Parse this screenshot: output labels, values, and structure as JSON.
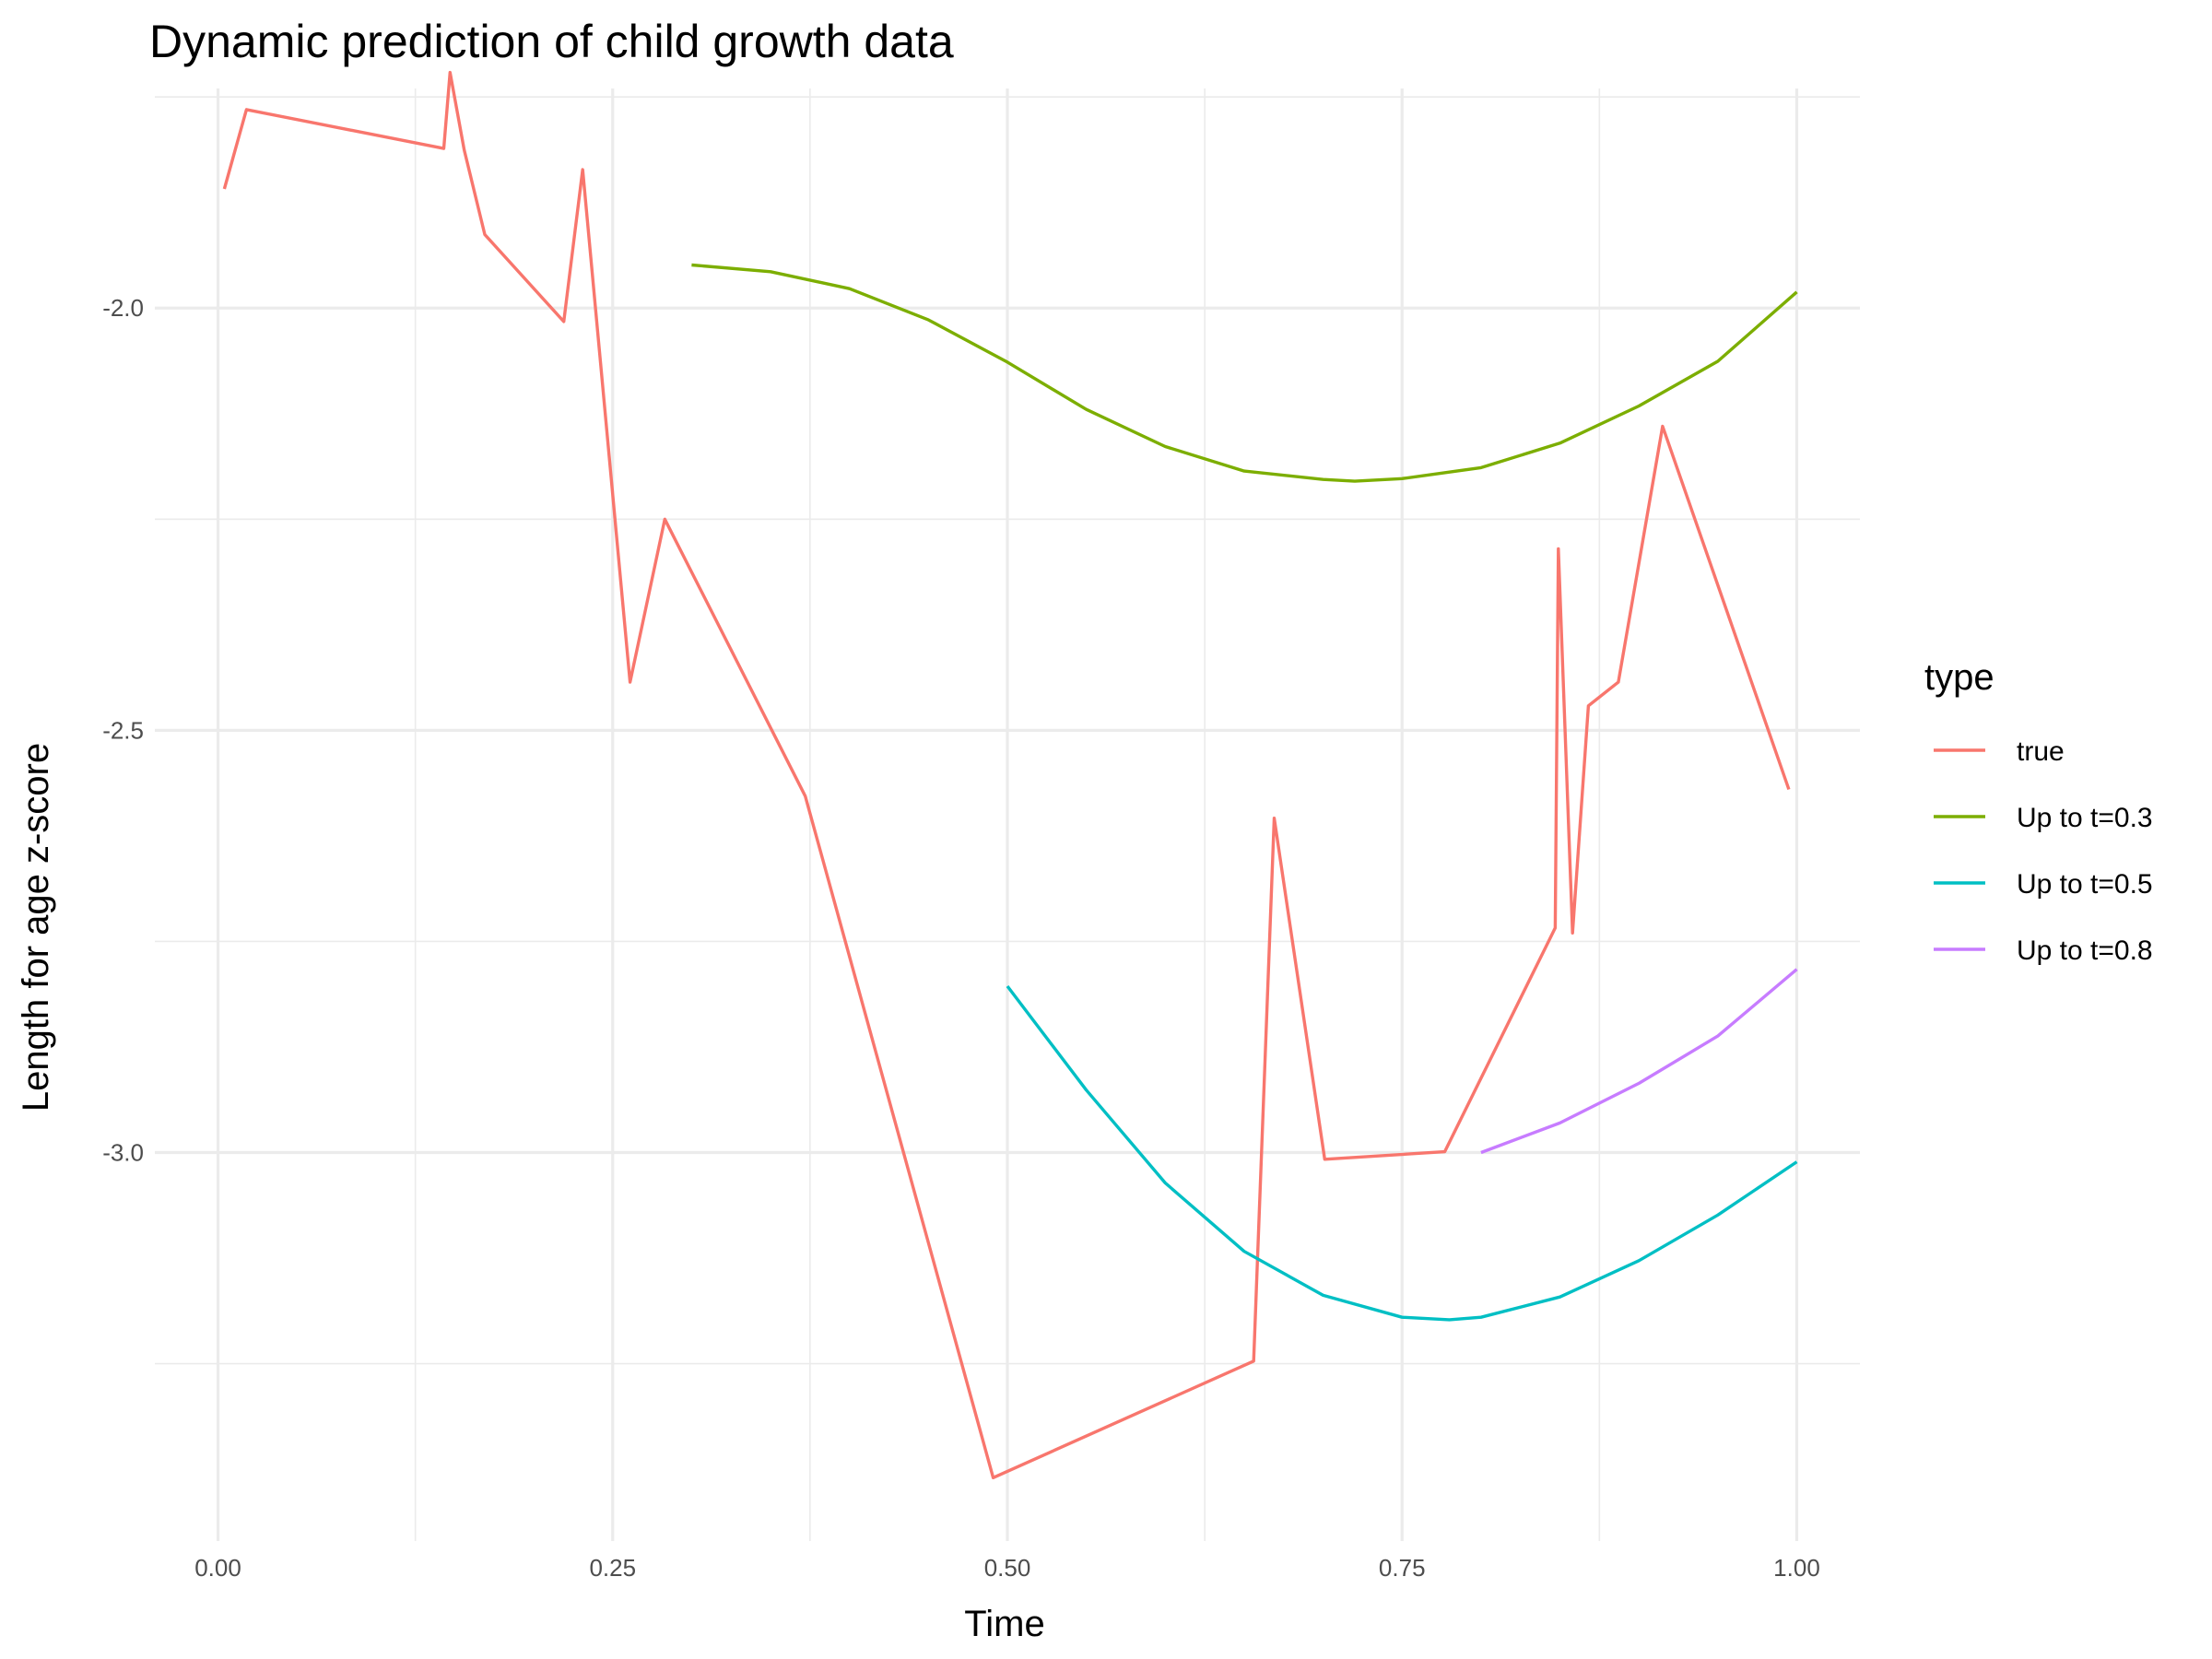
{
  "chart_data": {
    "type": "line",
    "title": "Dynamic prediction of child growth data",
    "xlabel": "Time",
    "ylabel": "Length for age z-score",
    "xlim": [
      -0.04,
      1.04
    ],
    "ylim": [
      -3.46,
      -1.74
    ],
    "x_ticks": [
      0.0,
      0.25,
      0.5,
      0.75,
      1.0
    ],
    "x_tick_labels": [
      "0.00",
      "0.25",
      "0.50",
      "0.75",
      "1.00"
    ],
    "x_minor": [
      0.125,
      0.375,
      0.625,
      0.875
    ],
    "y_ticks": [
      -3.0,
      -2.5,
      -2.0
    ],
    "y_tick_labels": [
      "-3.0",
      "-2.5",
      "-2.0"
    ],
    "y_minor": [
      -3.25,
      -2.75,
      -2.25,
      -1.75
    ],
    "grid": true,
    "legend": {
      "title": "type",
      "position": "right"
    },
    "series": [
      {
        "name": "true",
        "color": "#F8766D",
        "x": [
          0.004,
          0.018,
          0.143,
          0.147,
          0.156,
          0.169,
          0.219,
          0.231,
          0.261,
          0.283,
          0.372,
          0.491,
          0.656,
          0.669,
          0.701,
          0.777,
          0.847,
          0.849,
          0.858,
          0.868,
          0.887,
          0.915,
          0.995
        ],
        "values": [
          -1.859,
          -1.765,
          -1.811,
          -1.721,
          -1.813,
          -1.913,
          -2.016,
          -1.836,
          -2.443,
          -2.25,
          -2.578,
          -3.385,
          -3.247,
          -2.604,
          -3.008,
          -2.999,
          -2.734,
          -2.285,
          -2.74,
          -2.471,
          -2.443,
          -2.14,
          -2.57
        ]
      },
      {
        "name": "Up to t=0.3",
        "color": "#7CAE00",
        "x": [
          0.3,
          0.35,
          0.4,
          0.45,
          0.5,
          0.55,
          0.6,
          0.65,
          0.7,
          0.72,
          0.75,
          0.8,
          0.85,
          0.9,
          0.95,
          1.0
        ],
        "values": [
          -1.949,
          -1.957,
          -1.977,
          -2.014,
          -2.064,
          -2.12,
          -2.164,
          -2.193,
          -2.203,
          -2.205,
          -2.202,
          -2.189,
          -2.16,
          -2.116,
          -2.063,
          -1.981
        ]
      },
      {
        "name": "Up to t=0.5",
        "color": "#00BFC4",
        "x": [
          0.5,
          0.55,
          0.6,
          0.65,
          0.7,
          0.75,
          0.78,
          0.8,
          0.85,
          0.9,
          0.95,
          1.0
        ],
        "values": [
          -2.803,
          -2.926,
          -3.036,
          -3.117,
          -3.169,
          -3.195,
          -3.198,
          -3.195,
          -3.171,
          -3.128,
          -3.074,
          -3.011
        ]
      },
      {
        "name": "Up to t=0.8",
        "color": "#C77CFF",
        "x": [
          0.8,
          0.85,
          0.9,
          0.95,
          1.0
        ],
        "values": [
          -3.0,
          -2.965,
          -2.918,
          -2.862,
          -2.783
        ]
      }
    ]
  }
}
